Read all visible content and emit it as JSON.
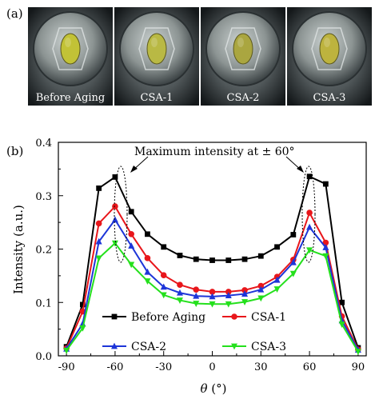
{
  "panel_a": {
    "letter": "(a)",
    "photos": [
      {
        "caption": "Before Aging",
        "tint": "#c2c236"
      },
      {
        "caption": "CSA-1",
        "tint": "#b9b944"
      },
      {
        "caption": "CSA-2",
        "tint": "#aaa640"
      },
      {
        "caption": "CSA-3",
        "tint": "#bdb33e"
      }
    ]
  },
  "panel_b": {
    "letter": "(b)",
    "annotation": "Maximum intensity at ± 60°",
    "xlabel_symbol": "θ",
    "xlabel_unit": " (°)"
  },
  "chart_data": {
    "type": "line",
    "title": "",
    "xlabel": "θ (°)",
    "ylabel": "Intensity (a.u.)",
    "xlim": [
      -95,
      95
    ],
    "ylim": [
      0.0,
      0.4
    ],
    "xticks": [
      "-90",
      "-60",
      "-30",
      "0",
      "30",
      "60",
      "90"
    ],
    "yticks": [
      "0.0",
      "0.1",
      "0.2",
      "0.3",
      "0.4"
    ],
    "x": [
      -90,
      -80,
      -70,
      -60,
      -50,
      -40,
      -30,
      -20,
      -10,
      0,
      10,
      20,
      30,
      40,
      50,
      60,
      70,
      80,
      90
    ],
    "series": [
      {
        "name": "Before Aging",
        "color": "#000000",
        "marker": "square",
        "values": [
          0.017,
          0.096,
          0.314,
          0.335,
          0.27,
          0.228,
          0.204,
          0.188,
          0.181,
          0.179,
          0.179,
          0.181,
          0.187,
          0.204,
          0.227,
          0.336,
          0.322,
          0.1,
          0.015
        ]
      },
      {
        "name": "CSA-1",
        "color": "#e8161b",
        "marker": "circle",
        "values": [
          0.014,
          0.083,
          0.248,
          0.28,
          0.228,
          0.183,
          0.151,
          0.133,
          0.124,
          0.12,
          0.12,
          0.123,
          0.131,
          0.148,
          0.18,
          0.268,
          0.212,
          0.074,
          0.012
        ]
      },
      {
        "name": "CSA-2",
        "color": "#1d35d8",
        "marker": "triangle-up",
        "values": [
          0.013,
          0.06,
          0.214,
          0.255,
          0.206,
          0.157,
          0.129,
          0.118,
          0.112,
          0.111,
          0.113,
          0.116,
          0.124,
          0.142,
          0.175,
          0.241,
          0.203,
          0.066,
          0.011
        ]
      },
      {
        "name": "CSA-3",
        "color": "#24e01c",
        "marker": "triangle-down",
        "values": [
          0.01,
          0.052,
          0.183,
          0.211,
          0.171,
          0.14,
          0.114,
          0.104,
          0.098,
          0.097,
          0.097,
          0.101,
          0.108,
          0.125,
          0.154,
          0.198,
          0.187,
          0.059,
          0.008
        ]
      }
    ],
    "legend": {
      "placement": "bottom-center",
      "columns": 2
    },
    "annotation": "Maximum intensity at ± 60°",
    "grid": false
  }
}
